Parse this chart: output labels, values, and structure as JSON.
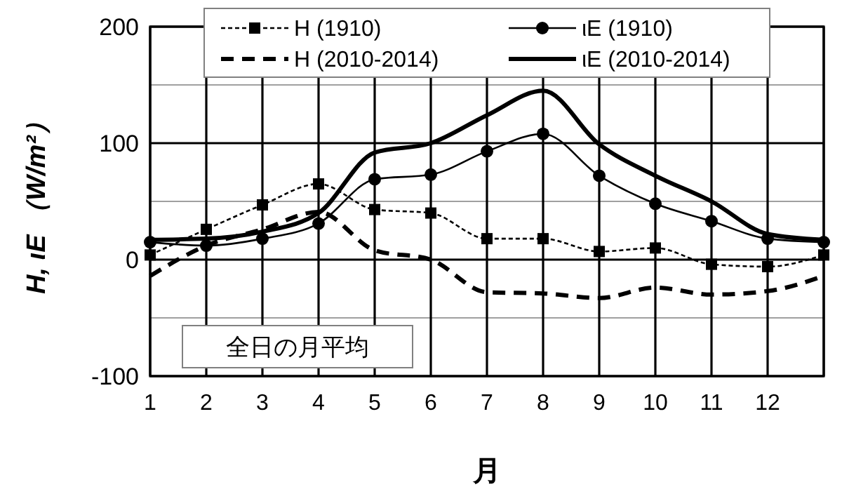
{
  "chart_data": {
    "type": "line",
    "xlabel": "月",
    "ylabel": "H, ιE （W/m²）",
    "x": [
      1,
      2,
      3,
      4,
      5,
      6,
      7,
      8,
      9,
      10,
      11,
      12,
      13
    ],
    "xlim": [
      1,
      13
    ],
    "xticks": [
      1,
      2,
      3,
      4,
      5,
      6,
      7,
      8,
      9,
      10,
      11,
      12,
      {
        "value": 13,
        "label": null
      }
    ],
    "ylim": [
      -100,
      200
    ],
    "yticks": [
      -100,
      {
        "value": -50,
        "label": null
      },
      0,
      {
        "value": 50,
        "label": null
      },
      100,
      {
        "value": 150,
        "label": null
      },
      200
    ],
    "grid": true,
    "legend": "top",
    "annotations": [
      "全日の月平均"
    ],
    "series": [
      {
        "name": "H (1910)",
        "color": "#000000",
        "line_style": "dotted",
        "marker": "square",
        "values": [
          4,
          26,
          47,
          65,
          43,
          40,
          18,
          18,
          7,
          10,
          -4,
          -6,
          4
        ]
      },
      {
        "name": "ιE (1910)",
        "color": "#000000",
        "line_style": "solid",
        "marker": "circle",
        "values": [
          15,
          12,
          18,
          31,
          69,
          73,
          93,
          108,
          72,
          48,
          33,
          18,
          15
        ]
      },
      {
        "name": "H (2010-2014)",
        "color": "#000000",
        "line_style": "dashed",
        "marker": "none",
        "values": [
          -14,
          12,
          26,
          41,
          8,
          0,
          -28,
          -29,
          -33,
          -24,
          -30,
          -27,
          -14
        ]
      },
      {
        "name": "ιE (2010-2014)",
        "color": "#000000",
        "line_style": "solid",
        "marker": "none",
        "values": [
          17,
          18,
          24,
          40,
          92,
          100,
          124,
          145,
          99,
          72,
          50,
          22,
          17
        ]
      }
    ]
  }
}
